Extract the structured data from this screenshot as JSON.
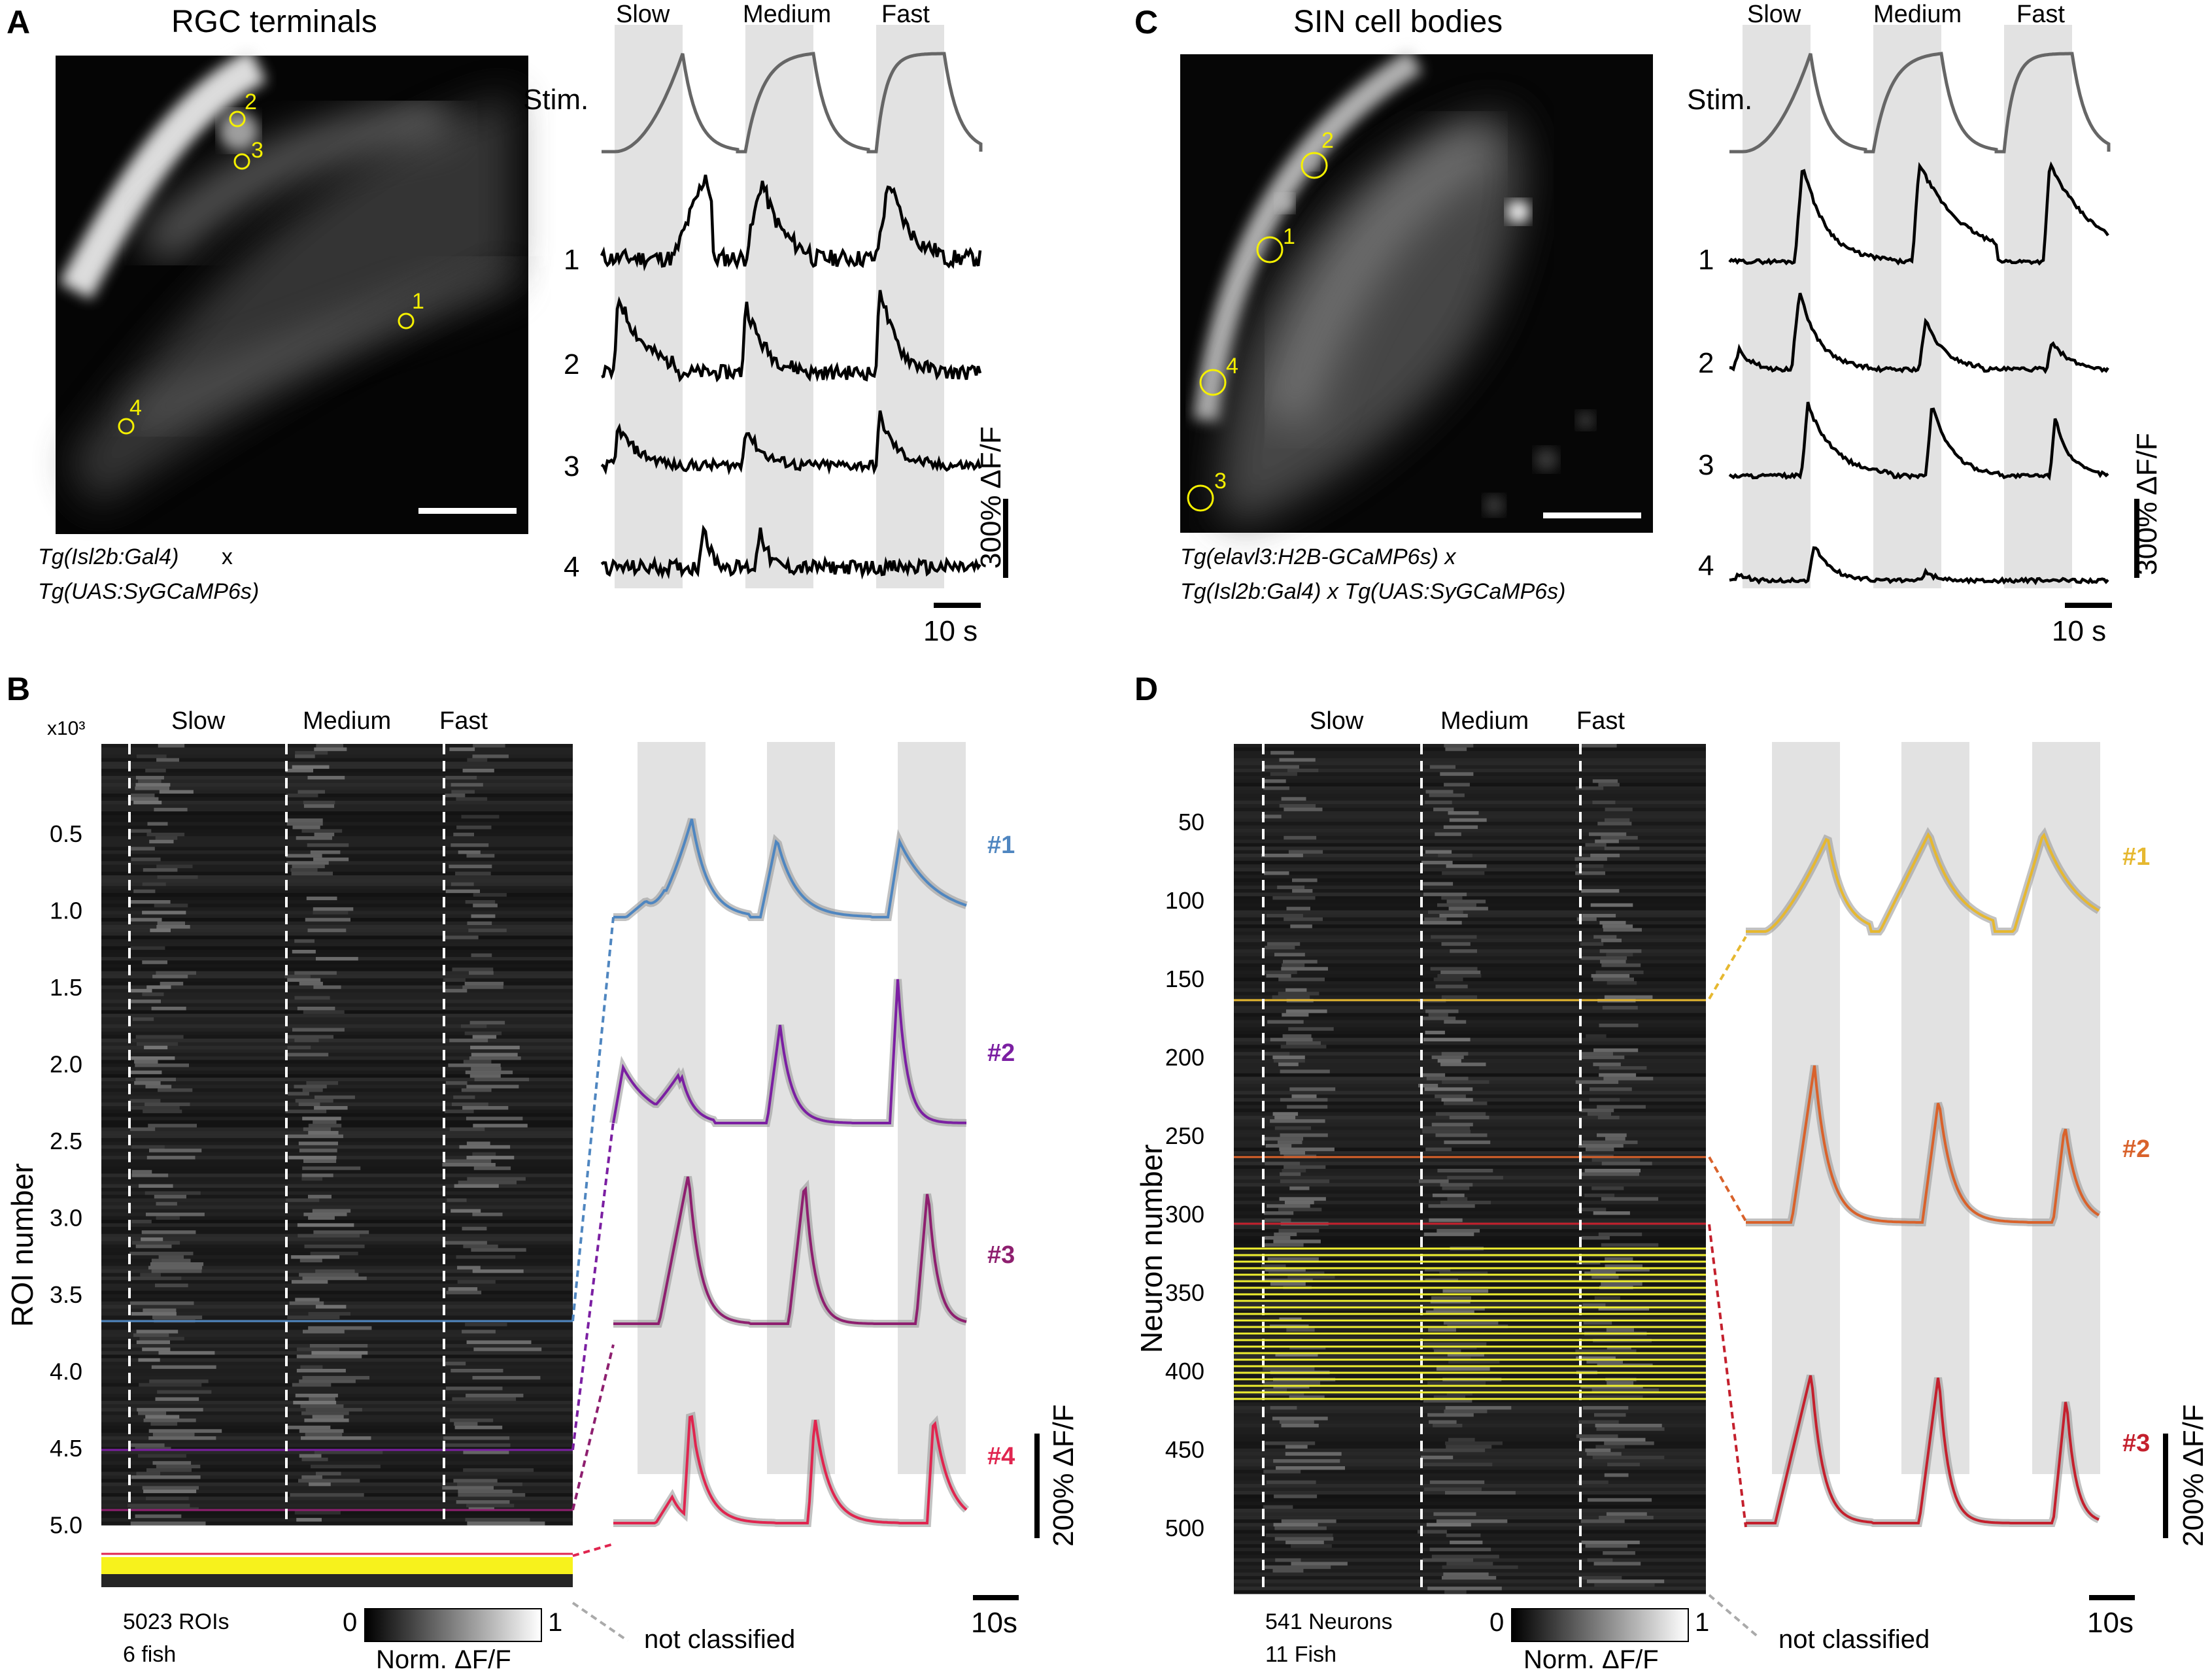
{
  "panels": {
    "A": {
      "letter": "A",
      "title": "RGC terminals",
      "genotype_line1": "Tg(Isl2b:Gal4)",
      "genotype_cross": "x",
      "genotype_line2": "Tg(UAS:SyGCaMP6s)",
      "stim_labels": [
        "Slow",
        "Medium",
        "Fast"
      ],
      "stim_label": "Stim.",
      "roi_labels": [
        "1",
        "2",
        "3",
        "4"
      ],
      "scalebar_y": "300% ΔF/F",
      "scalebar_x": "10 s"
    },
    "B": {
      "letter": "B",
      "multiplier": "x10³",
      "stim_labels": [
        "Slow",
        "Medium",
        "Fast"
      ],
      "ylabel": "ROI number",
      "yticks": [
        "0.5",
        "1.0",
        "1.5",
        "2.0",
        "2.5",
        "3.0",
        "3.5",
        "4.0",
        "4.5",
        "5.0"
      ],
      "count_line1": "5023 ROIs",
      "count_line2": "6 fish",
      "colorbar_min": "0",
      "colorbar_max": "1",
      "colorbar_label": "Norm. ΔF/F",
      "not_classified": "not classified",
      "clusters": [
        "#1",
        "#2",
        "#3",
        "#4"
      ],
      "cluster_colors": [
        "#4f86c0",
        "#7b1fa2",
        "#8e1f6f",
        "#e0254f"
      ],
      "scalebar_y": "200% ΔF/F",
      "scalebar_x": "10s"
    },
    "C": {
      "letter": "C",
      "title": "SIN cell bodies",
      "genotype_line1": "Tg(elavl3:H2B-GCaMP6s) x",
      "genotype_line2": "Tg(Isl2b:Gal4) x Tg(UAS:SyGCaMP6s)",
      "stim_labels": [
        "Slow",
        "Medium",
        "Fast"
      ],
      "stim_label": "Stim.",
      "roi_labels": [
        "1",
        "2",
        "3",
        "4"
      ],
      "scalebar_y": "300% ΔF/F",
      "scalebar_x": "10 s"
    },
    "D": {
      "letter": "D",
      "stim_labels": [
        "Slow",
        "Medium",
        "Fast"
      ],
      "ylabel": "Neuron number",
      "yticks": [
        "50",
        "100",
        "150",
        "200",
        "250",
        "300",
        "350",
        "400",
        "450",
        "500"
      ],
      "count_line1": "541 Neurons",
      "count_line2": "11 Fish",
      "colorbar_min": "0",
      "colorbar_max": "1",
      "colorbar_label": "Norm. ΔF/F",
      "not_classified": "not classified",
      "clusters": [
        "#1",
        "#2",
        "#3"
      ],
      "cluster_colors": [
        "#e6b830",
        "#d9622b",
        "#c4202d"
      ],
      "scalebar_y": "200% ΔF/F",
      "scalebar_x": "10s"
    }
  }
}
